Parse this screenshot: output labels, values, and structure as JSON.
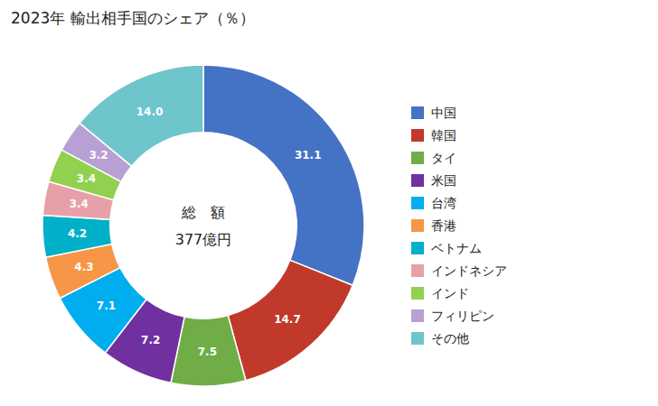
{
  "chart_data": {
    "type": "donut",
    "title": "2023年 輸出相手国のシェア（％）",
    "annotations": [
      "総　額",
      "377億円"
    ],
    "categories": [
      "中国",
      "韓国",
      "タイ",
      "米国",
      "台湾",
      "香港",
      "ベトナム",
      "インドネシア",
      "インド",
      "フィリピン",
      "その他"
    ],
    "values": [
      31.1,
      14.7,
      7.5,
      7.2,
      7.1,
      4.3,
      4.2,
      3.4,
      3.4,
      3.2,
      14.0
    ],
    "value_labels": [
      "31.1",
      "14.7",
      "7.5",
      "7.2",
      "7.1",
      "4.3",
      "4.2",
      "3.4",
      "3.4",
      "3.2",
      "14.0"
    ],
    "colors": [
      "#4472C4",
      "#C0392B",
      "#70AD47",
      "#7030A0",
      "#00ADEF",
      "#F79646",
      "#00B0C8",
      "#E8A0A8",
      "#92D050",
      "#B8A0D4",
      "#6EC6CC"
    ],
    "data_labels": true,
    "legend": "right"
  }
}
